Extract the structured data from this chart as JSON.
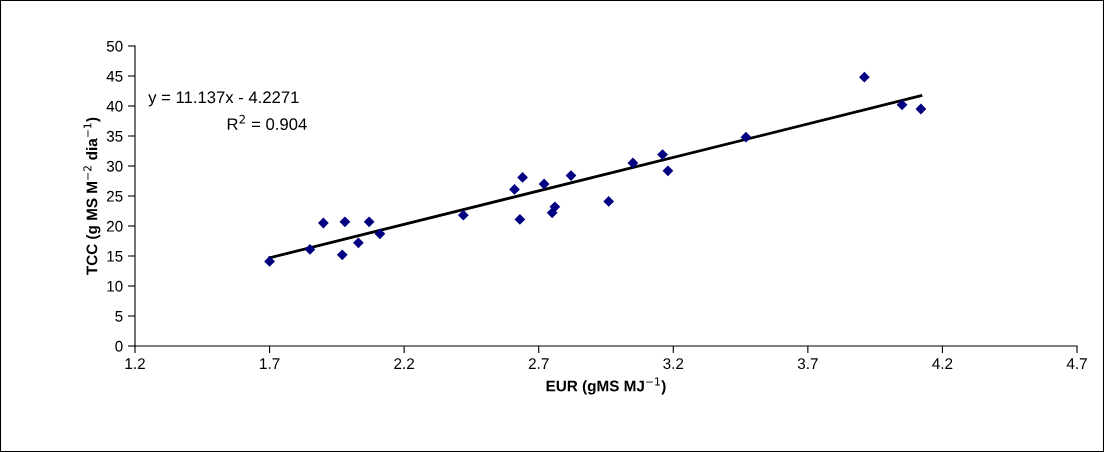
{
  "chart_data": {
    "type": "scatter",
    "xlabel": "EUR (gMS MJ$^{−1}$)",
    "ylabel": "TCC (g MS M$^{−2}$ dia$^{−1}$)",
    "annotations": [
      "y = 11.137x - 4.2271",
      "R$^{2}$ = 0.904"
    ],
    "xlim": [
      1.2,
      4.7
    ],
    "xticks": [
      1.2,
      1.7,
      2.2,
      2.7,
      3.2,
      3.7,
      4.2,
      4.7
    ],
    "ylim": [
      0,
      50
    ],
    "yticks": [
      0,
      5,
      10,
      15,
      20,
      25,
      30,
      35,
      40,
      45,
      50
    ],
    "grid": false,
    "legend": false,
    "series": [
      {
        "color": "#000080",
        "marker": "diamond",
        "x": [
          1.7,
          1.85,
          1.9,
          1.97,
          1.98,
          2.03,
          2.07,
          2.11,
          2.42,
          2.61,
          2.64,
          2.63,
          2.72,
          2.75,
          2.76,
          2.82,
          2.96,
          3.05,
          3.16,
          3.18,
          3.47,
          3.91,
          4.05,
          4.12
        ],
        "values": [
          14.1,
          16.1,
          20.5,
          15.2,
          20.7,
          17.2,
          20.7,
          18.7,
          21.8,
          26.1,
          28.1,
          21.1,
          27.0,
          22.2,
          23.2,
          28.4,
          24.1,
          30.5,
          31.9,
          29.2,
          34.8,
          44.8,
          40.2,
          39.5
        ]
      },
      {
        "type": "line",
        "color": "#000000",
        "marker": "none",
        "line_style": "solid",
        "x": [
          1.7,
          4.12
        ],
        "values": [
          14.7,
          41.7
        ]
      }
    ]
  }
}
